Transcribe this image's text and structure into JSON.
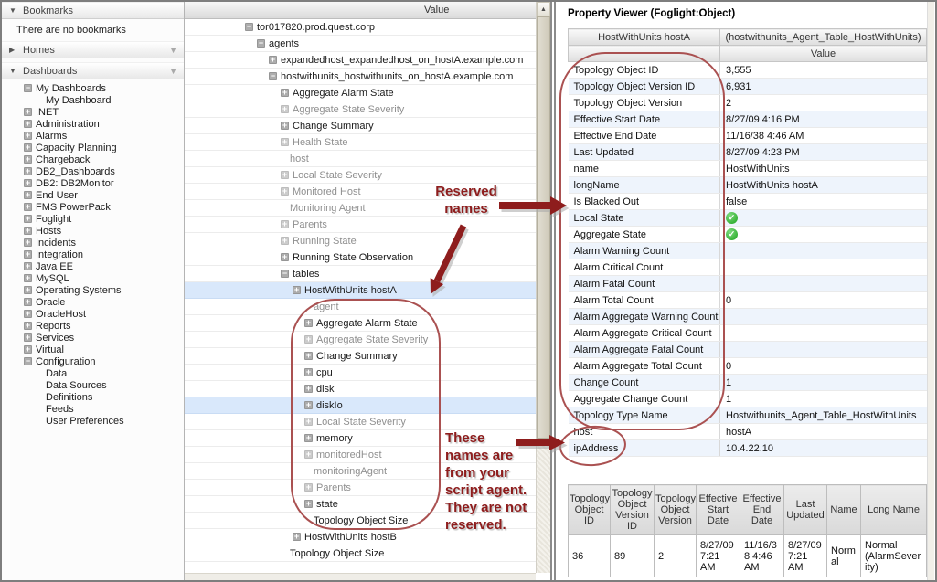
{
  "colors": {
    "annotation_red": "#8e1d1d",
    "oval_red": "#aa5151",
    "selected_row": "#d9e8fb",
    "status_green": "#1ca21c"
  },
  "icons": {
    "section_collapse": "▼",
    "section_expand": "▶",
    "filter_dropdown": "▼",
    "scroll_up": "▲",
    "tree_expand": "+",
    "tree_collapse": "−",
    "green_check": "✓"
  },
  "sidebar": {
    "bookmarks": {
      "label": "Bookmarks",
      "empty_text": "There are no bookmarks"
    },
    "homes": {
      "label": "Homes"
    },
    "dashboards": {
      "label": "Dashboards"
    },
    "tree": [
      {
        "label": "My Dashboards",
        "box": "minus",
        "indent": 0
      },
      {
        "label": "My Dashboard",
        "box": "none",
        "indent": 1
      },
      {
        "label": ".NET",
        "box": "plus",
        "indent": 0
      },
      {
        "label": "Administration",
        "box": "plus",
        "indent": 0
      },
      {
        "label": "Alarms",
        "box": "plus",
        "indent": 0
      },
      {
        "label": "Capacity Planning",
        "box": "plus",
        "indent": 0
      },
      {
        "label": "Chargeback",
        "box": "plus",
        "indent": 0
      },
      {
        "label": "DB2_Dashboards",
        "box": "plus",
        "indent": 0
      },
      {
        "label": "DB2: DB2Monitor",
        "box": "plus",
        "indent": 0
      },
      {
        "label": "End User",
        "box": "plus",
        "indent": 0
      },
      {
        "label": "FMS PowerPack",
        "box": "plus",
        "indent": 0
      },
      {
        "label": "Foglight",
        "box": "plus",
        "indent": 0
      },
      {
        "label": "Hosts",
        "box": "plus",
        "indent": 0
      },
      {
        "label": "Incidents",
        "box": "plus",
        "indent": 0
      },
      {
        "label": "Integration",
        "box": "plus",
        "indent": 0
      },
      {
        "label": "Java EE",
        "box": "plus",
        "indent": 0
      },
      {
        "label": "MySQL",
        "box": "plus",
        "indent": 0
      },
      {
        "label": "Operating Systems",
        "box": "plus",
        "indent": 0
      },
      {
        "label": "Oracle",
        "box": "plus",
        "indent": 0
      },
      {
        "label": "OracleHost",
        "box": "plus",
        "indent": 0
      },
      {
        "label": "Reports",
        "box": "plus",
        "indent": 0
      },
      {
        "label": "Services",
        "box": "plus",
        "indent": 0
      },
      {
        "label": "Virtual",
        "box": "plus",
        "indent": 0
      },
      {
        "label": "Configuration",
        "box": "minus",
        "indent": 0
      },
      {
        "label": "Data",
        "box": "none",
        "indent": 1
      },
      {
        "label": "Data Sources",
        "box": "none",
        "indent": 1
      },
      {
        "label": "Definitions",
        "box": "none",
        "indent": 1
      },
      {
        "label": "Feeds",
        "box": "none",
        "indent": 1
      },
      {
        "label": "User Preferences",
        "box": "none",
        "indent": 1
      }
    ]
  },
  "tree_panel": {
    "header": "Value",
    "rows": [
      {
        "label": "tor017820.prod.quest.corp",
        "box": "minus",
        "level": 0,
        "dim": false,
        "selected": false
      },
      {
        "label": "agents",
        "box": "minus",
        "level": 1,
        "dim": false,
        "selected": false
      },
      {
        "label": "expandedhost_expandedhost_on_hostA.example.com",
        "box": "plus",
        "level": 2,
        "dim": false,
        "selected": false
      },
      {
        "label": "hostwithunits_hostwithunits_on_hostA.example.com",
        "box": "minus",
        "level": 2,
        "dim": false,
        "selected": false
      },
      {
        "label": "Aggregate Alarm State",
        "box": "plus",
        "level": 3,
        "dim": false,
        "selected": false
      },
      {
        "label": "Aggregate State Severity",
        "box": "plus",
        "level": 3,
        "dim": true,
        "selected": false
      },
      {
        "label": "Change Summary",
        "box": "plus",
        "level": 3,
        "dim": false,
        "selected": false
      },
      {
        "label": "Health State",
        "box": "plus",
        "level": 3,
        "dim": true,
        "selected": false
      },
      {
        "label": "host",
        "box": "none",
        "level": 3,
        "dim": true,
        "selected": false
      },
      {
        "label": "Local State Severity",
        "box": "plus",
        "level": 3,
        "dim": true,
        "selected": false
      },
      {
        "label": "Monitored Host",
        "box": "plus",
        "level": 3,
        "dim": true,
        "selected": false
      },
      {
        "label": "Monitoring Agent",
        "box": "none",
        "level": 3,
        "dim": true,
        "selected": false
      },
      {
        "label": "Parents",
        "box": "plus",
        "level": 3,
        "dim": true,
        "selected": false
      },
      {
        "label": "Running State",
        "box": "plus",
        "level": 3,
        "dim": true,
        "selected": false
      },
      {
        "label": "Running State Observation",
        "box": "plus",
        "level": 3,
        "dim": false,
        "selected": false
      },
      {
        "label": "tables",
        "box": "minus",
        "level": 3,
        "dim": false,
        "selected": false
      },
      {
        "label": "HostWithUnits hostA",
        "box": "plus",
        "level": 4,
        "dim": false,
        "selected": true
      },
      {
        "label": "agent",
        "box": "none",
        "level": 5,
        "dim": true,
        "selected": false
      },
      {
        "label": "Aggregate Alarm State",
        "box": "plus",
        "level": 5,
        "dim": false,
        "selected": false
      },
      {
        "label": "Aggregate State Severity",
        "box": "plus",
        "level": 5,
        "dim": true,
        "selected": false
      },
      {
        "label": "Change Summary",
        "box": "plus",
        "level": 5,
        "dim": false,
        "selected": false
      },
      {
        "label": "cpu",
        "box": "plus",
        "level": 5,
        "dim": false,
        "selected": false
      },
      {
        "label": "disk",
        "box": "plus",
        "level": 5,
        "dim": false,
        "selected": false
      },
      {
        "label": "diskIo",
        "box": "plus",
        "level": 5,
        "dim": false,
        "selected": true
      },
      {
        "label": "Local State Severity",
        "box": "plus",
        "level": 5,
        "dim": true,
        "selected": false
      },
      {
        "label": "memory",
        "box": "plus",
        "level": 5,
        "dim": false,
        "selected": false
      },
      {
        "label": "monitoredHost",
        "box": "plus",
        "level": 5,
        "dim": true,
        "selected": false
      },
      {
        "label": "monitoringAgent",
        "box": "none",
        "level": 5,
        "dim": true,
        "selected": false
      },
      {
        "label": "Parents",
        "box": "plus",
        "level": 5,
        "dim": true,
        "selected": false
      },
      {
        "label": "state",
        "box": "plus",
        "level": 5,
        "dim": false,
        "selected": false
      },
      {
        "label": "Topology Object Size",
        "box": "none",
        "level": 5,
        "dim": false,
        "selected": false
      },
      {
        "label": "HostWithUnits hostB",
        "box": "plus",
        "level": 4,
        "dim": false,
        "selected": false
      },
      {
        "label": "Topology Object Size",
        "box": "none",
        "level": 3,
        "dim": false,
        "selected": false
      }
    ]
  },
  "property_viewer": {
    "title": "Property Viewer (Foglight:Object)",
    "object_label": "HostWithUnits hostA",
    "object_type": "(hostwithunits_Agent_Table_HostWithUnits)",
    "value_column": "Value",
    "rows": [
      {
        "name": "Topology Object ID",
        "value": "3,555"
      },
      {
        "name": "Topology Object Version ID",
        "value": "6,931"
      },
      {
        "name": "Topology Object Version",
        "value": "2"
      },
      {
        "name": "Effective Start Date",
        "value": "8/27/09 4:16 PM"
      },
      {
        "name": "Effective End Date",
        "value": "11/16/38 4:46 AM"
      },
      {
        "name": "Last Updated",
        "value": "8/27/09 4:23 PM"
      },
      {
        "name": "name",
        "value": "HostWithUnits"
      },
      {
        "name": "longName",
        "value": "HostWithUnits hostA"
      },
      {
        "name": "Is Blacked Out",
        "value": "false"
      },
      {
        "name": "Local State",
        "value": "",
        "icon": "green-check"
      },
      {
        "name": "Aggregate State",
        "value": "",
        "icon": "green-check"
      },
      {
        "name": "Alarm Warning Count",
        "value": ""
      },
      {
        "name": "Alarm Critical Count",
        "value": ""
      },
      {
        "name": "Alarm Fatal Count",
        "value": ""
      },
      {
        "name": "Alarm Total Count",
        "value": "0"
      },
      {
        "name": "Alarm Aggregate Warning Count",
        "value": ""
      },
      {
        "name": "Alarm Aggregate Critical Count",
        "value": ""
      },
      {
        "name": "Alarm Aggregate Fatal Count",
        "value": ""
      },
      {
        "name": "Alarm Aggregate Total Count",
        "value": "0"
      },
      {
        "name": "Change Count",
        "value": "1"
      },
      {
        "name": "Aggregate Change Count",
        "value": "1"
      },
      {
        "name": "Topology Type Name",
        "value": "Hostwithunits_Agent_Table_HostWithUnits"
      },
      {
        "name": "host",
        "value": "hostA"
      },
      {
        "name": "ipAddress",
        "value": "10.4.22.10"
      }
    ]
  },
  "bottom_table": {
    "columns": [
      "Topology Object ID",
      "Topology Object Version ID",
      "Topology Object Version",
      "Effective Start Date",
      "Effective End Date",
      "Last Updated",
      "Name",
      "Long Name"
    ],
    "rows": [
      [
        "36",
        "89",
        "2",
        "8/27/09 7:21 AM",
        "11/16/38 4:46 AM",
        "8/27/09 7:21 AM",
        "Normal",
        "Normal (AlarmSeverity)"
      ]
    ]
  },
  "annotations": {
    "reserved_lines": [
      "Reserved",
      "names"
    ],
    "script_lines": [
      "These",
      "names are",
      "from your",
      "script agent.",
      "They are not",
      "reserved."
    ]
  }
}
